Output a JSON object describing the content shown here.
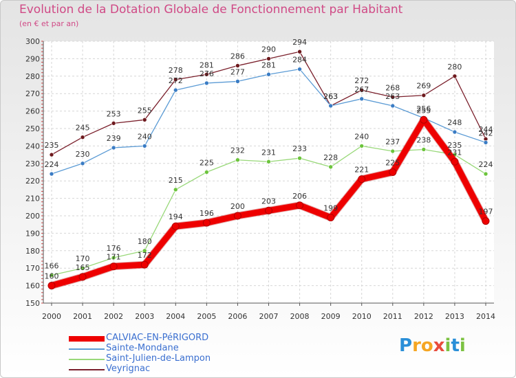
{
  "chart_data": {
    "type": "line",
    "title": "Evolution de la Dotation Globale de Fonctionnement par Habitant",
    "subtitle": "(en € et par an)",
    "xlabel": "",
    "ylabel": "",
    "ylim": [
      150,
      300
    ],
    "yticks": [
      150,
      160,
      170,
      180,
      190,
      200,
      210,
      220,
      230,
      240,
      250,
      260,
      270,
      280,
      290,
      300
    ],
    "grid": true,
    "legend_position": "bottom",
    "x": [
      2000,
      2001,
      2002,
      2003,
      2004,
      2005,
      2006,
      2007,
      2008,
      2009,
      2010,
      2011,
      2012,
      2013,
      2014
    ],
    "series": [
      {
        "name": "Veyrignac",
        "color": "#7a1f2b",
        "point_color": "#6e1a1e",
        "width": 1.3,
        "emphasis": false,
        "values": [
          235,
          245,
          253,
          255,
          278,
          281,
          286,
          290,
          294,
          263,
          272,
          268,
          269,
          280,
          244
        ]
      },
      {
        "name": "Sainte-Mondane",
        "color": "#5b9bd5",
        "point_color": "#3a7cc4",
        "width": 1.3,
        "emphasis": false,
        "values": [
          224,
          230,
          239,
          240,
          272,
          276,
          277,
          281,
          284,
          263,
          267,
          263,
          256,
          248,
          242
        ]
      },
      {
        "name": "Saint-Julien-de-Lampon",
        "color": "#98d878",
        "point_color": "#6cc43c",
        "width": 1.3,
        "emphasis": false,
        "values": [
          166,
          170,
          176,
          180,
          215,
          225,
          232,
          231,
          233,
          228,
          240,
          237,
          238,
          235,
          224
        ]
      },
      {
        "name": "CALVIAC-EN-PéRIGORD",
        "color": "#ee0000",
        "point_color": "#ee0000",
        "width": 9,
        "emphasis": true,
        "values": [
          160,
          165,
          171,
          172,
          194,
          196,
          200,
          203,
          206,
          199,
          221,
          225,
          255,
          231,
          197
        ]
      }
    ]
  },
  "legend": {
    "items": [
      {
        "label": "CALVIAC-EN-PéRIGORD",
        "color": "#ee0000"
      },
      {
        "label": "Sainte-Mondane",
        "color": "#5b9bd5"
      },
      {
        "label": "Saint-Julien-de-Lampon",
        "color": "#98d878"
      },
      {
        "label": "Veyrignac",
        "color": "#7a1f2b"
      }
    ]
  },
  "logo": {
    "letters": [
      "P",
      "r",
      "o",
      "x",
      "i",
      "t",
      "i"
    ],
    "colors": [
      "#2a8fd8",
      "#f5a623",
      "#f5a623",
      "#e84c3d",
      "#7cc242",
      "#2a8fd8",
      "#7cc242"
    ]
  }
}
